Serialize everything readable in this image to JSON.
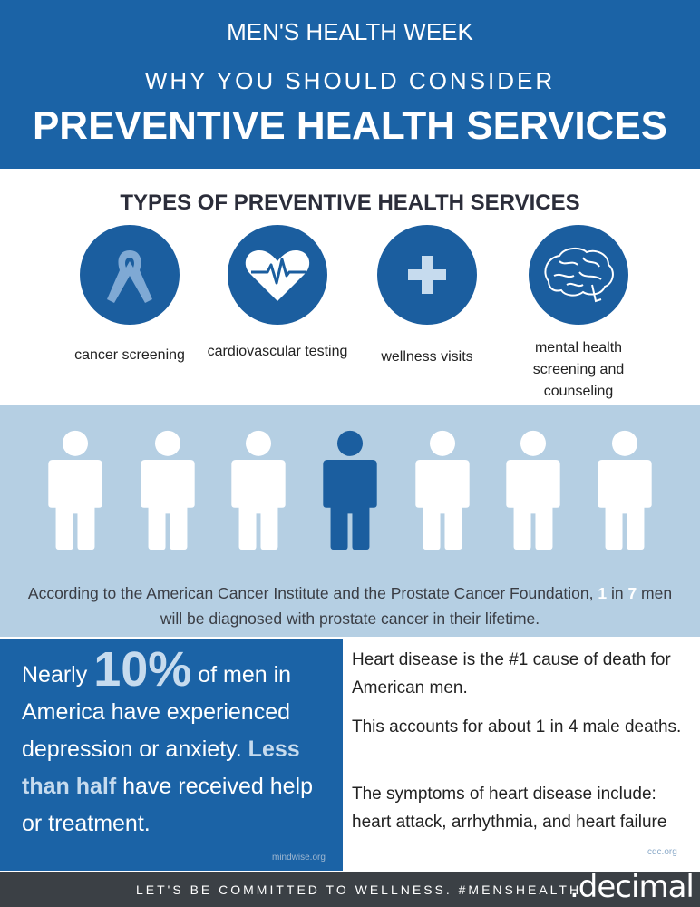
{
  "header": {
    "kicker": "MEN'S HEALTH WEEK",
    "subtitle": "WHY YOU SHOULD CONSIDER",
    "title": "PREVENTIVE HEALTH SERVICES"
  },
  "services": {
    "title": "TYPES OF PREVENTIVE HEALTH SERVICES",
    "items": [
      "cancer screening",
      "cardiovascular testing",
      "wellness visits",
      "mental health screening and counseling"
    ]
  },
  "prostate": {
    "parts": [
      "According to the American Cancer Institute and the Prostate Cancer Foundation, ",
      "1",
      " in ",
      "7",
      " men will be diagnosed with prostate cancer in their lifetime."
    ]
  },
  "depression": {
    "parts": [
      "Nearly ",
      "10%",
      " of men in America have experienced depression or anxiety. ",
      "Less than half",
      " have received help or treatment."
    ],
    "source": "mindwise.org"
  },
  "heart": {
    "paragraphs": [
      "Heart disease is the #1 cause of death for American men.",
      "This accounts for about 1 in 4 male deaths.",
      "The symptoms of heart disease include: heart attack, arrhythmia, and heart failure"
    ],
    "source": "cdc.org"
  },
  "footer": {
    "slogan": "LET'S BE COMMITTED TO WELLNESS. #MENSHEALTH",
    "brand": ".decimal"
  }
}
